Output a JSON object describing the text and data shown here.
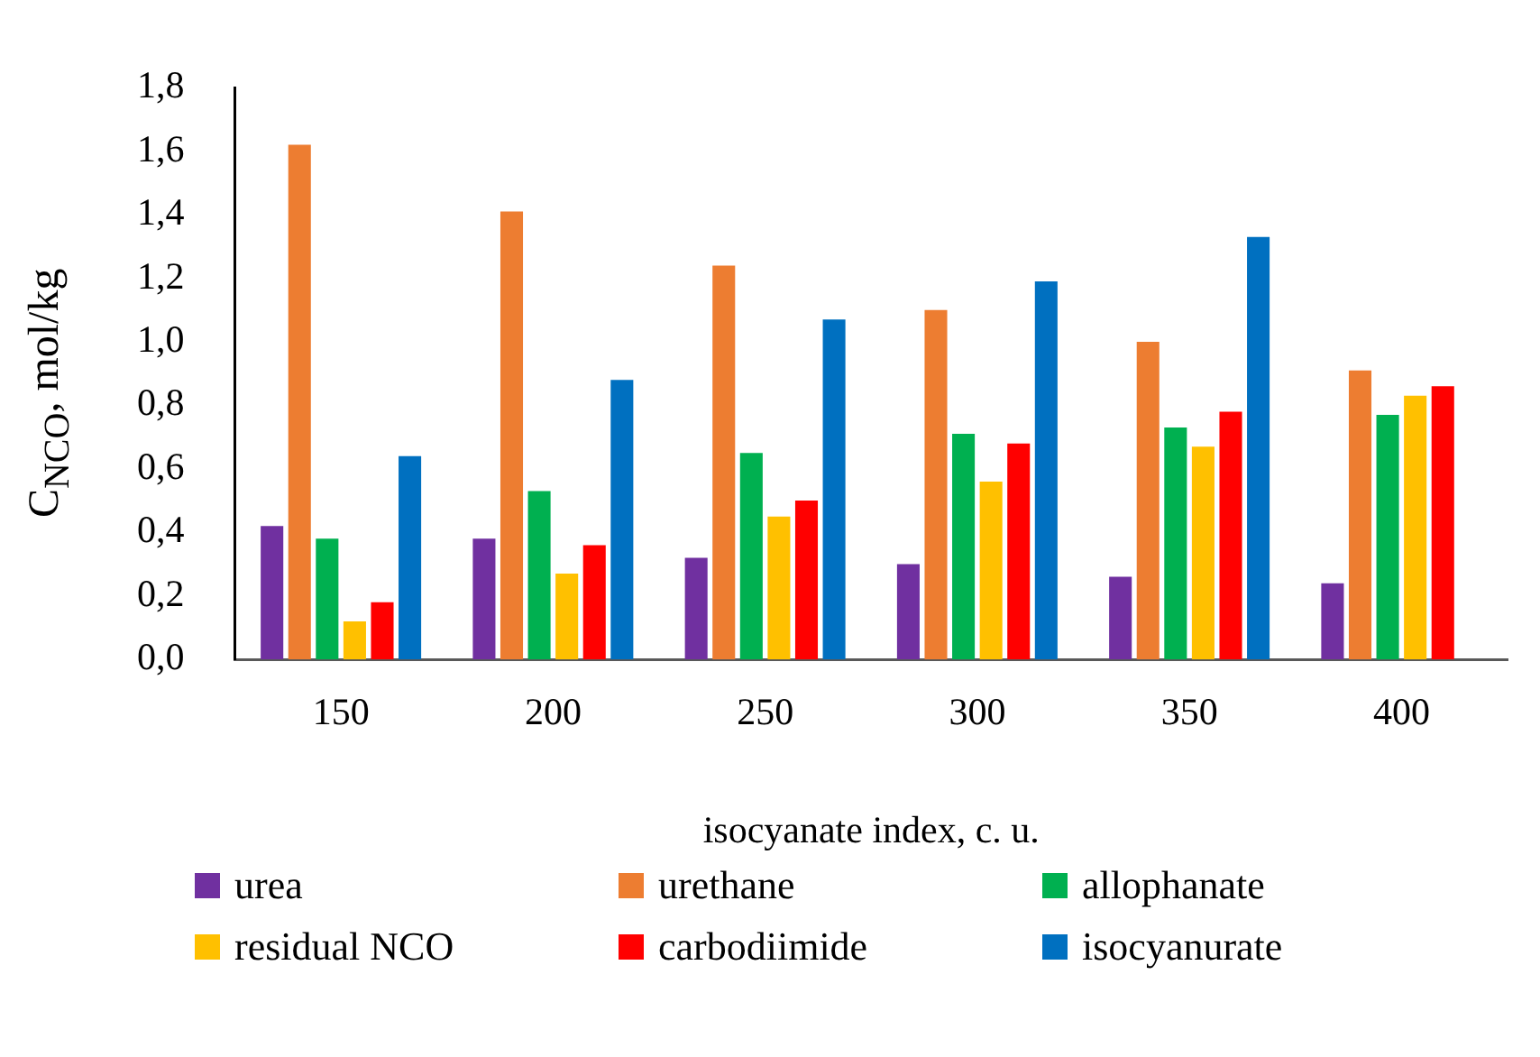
{
  "chart_data": {
    "type": "bar",
    "xlabel": "isocyanate index, c. u.",
    "ylabel": "C$_{NCO}$, mol/kg",
    "categories": [
      "150",
      "200",
      "250",
      "300",
      "350",
      "400"
    ],
    "series": [
      {
        "name": "urea",
        "color": "#7030a0",
        "values": [
          0.42,
          0.38,
          0.32,
          0.3,
          0.26,
          0.24
        ]
      },
      {
        "name": "urethane",
        "color": "#ed7d31",
        "values": [
          1.62,
          1.41,
          1.24,
          1.1,
          1.0,
          0.91
        ]
      },
      {
        "name": "allophanate",
        "color": "#00b050",
        "values": [
          0.38,
          0.53,
          0.65,
          0.71,
          0.73,
          0.77
        ]
      },
      {
        "name": "residual NCO",
        "color": "#ffc000",
        "values": [
          0.12,
          0.27,
          0.45,
          0.56,
          0.67,
          0.83
        ]
      },
      {
        "name": "carbodiimide",
        "color": "#ff0000",
        "values": [
          0.18,
          0.36,
          0.5,
          0.68,
          0.78,
          0.86
        ]
      },
      {
        "name": "isocyanurate",
        "color": "#0070c0",
        "values": [
          0.64,
          0.88,
          1.07,
          1.19,
          1.33,
          null
        ]
      }
    ],
    "ylim": [
      0,
      1.8
    ],
    "yticks": [
      {
        "value": 0,
        "label": "0,0"
      },
      {
        "value": 0.2,
        "label": "0,2"
      },
      {
        "value": 0.4,
        "label": "0,4"
      },
      {
        "value": 0.6,
        "label": "0,6"
      },
      {
        "value": 0.8,
        "label": "0,8"
      },
      {
        "value": 1,
        "label": "1,0"
      },
      {
        "value": 1.2,
        "label": "1,2"
      },
      {
        "value": 1.4,
        "label": "1,4"
      },
      {
        "value": 1.6,
        "label": "1,6"
      },
      {
        "value": 1.8,
        "label": "1,8"
      }
    ],
    "grid": false,
    "legend": "bottom"
  }
}
